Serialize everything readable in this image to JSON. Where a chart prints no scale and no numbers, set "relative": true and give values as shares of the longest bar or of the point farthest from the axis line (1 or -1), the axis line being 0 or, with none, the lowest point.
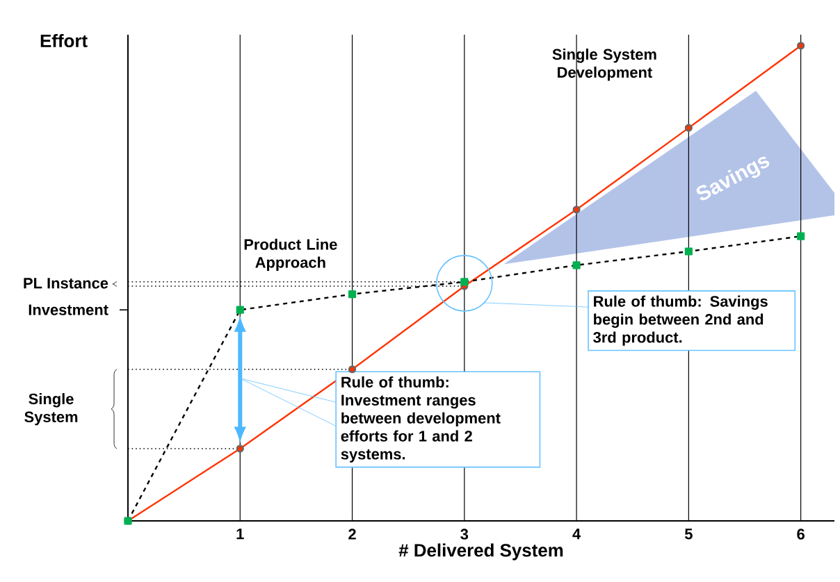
{
  "chart_data": {
    "type": "line",
    "relative": true,
    "grid": "x",
    "xlim": [
      0,
      6.3
    ],
    "xticks": [
      1,
      2,
      3,
      4,
      5,
      6
    ],
    "xlabel": "# Delivered System",
    "ylabel": "Effort",
    "series": [
      {
        "color": "#ff3300",
        "marker": "circle",
        "line_style": "solid",
        "x": [
          0,
          1,
          2,
          3,
          4,
          5,
          6
        ],
        "values": [
          0,
          0.152,
          0.319,
          0.494,
          0.655,
          0.827,
          1.0
        ]
      },
      {
        "color": "#00b050",
        "marker": "square",
        "line_style": "dashed",
        "x": [
          0,
          1,
          2,
          3,
          4,
          5,
          6
        ],
        "values": [
          0,
          0.444,
          0.477,
          0.503,
          0.538,
          0.567,
          0.599
        ]
      }
    ],
    "ref_lines": [
      {
        "axis": "y",
        "value": 0.152,
        "line_style": "dotted"
      },
      {
        "axis": "y",
        "value": 0.319,
        "line_style": "dotted"
      },
      {
        "axis": "y",
        "value": 0.494,
        "line_style": "dotted"
      },
      {
        "axis": "y",
        "value": 0.503,
        "line_style": "dotted"
      }
    ],
    "annotations": [
      "Savings",
      "Single System Development",
      "Product Line Approach",
      "Rule of thumb: Savings begin between 2nd and 3rd product.",
      "Rule of thumb: Investment ranges between development efforts for 1 and 2 systems.",
      "PL Instance",
      "Investment",
      "Single System"
    ]
  }
}
